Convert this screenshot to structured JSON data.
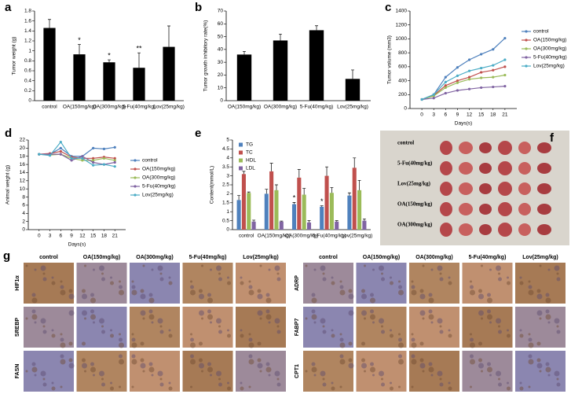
{
  "chart_data": [
    {
      "type": "bar",
      "panel": "a",
      "ylabel": "Tumor weight (g)",
      "categories": [
        "control",
        "OA(150mg/kg)",
        "OA(300mg/kg)",
        "5-Fu(40mg/kg)",
        "Lov(25mg/kg)"
      ],
      "values": [
        1.46,
        0.93,
        0.77,
        0.66,
        1.08
      ],
      "errors": [
        0.17,
        0.2,
        0.05,
        0.3,
        0.42
      ],
      "color": "#000000",
      "ylim": [
        0,
        1.8
      ],
      "yticks": [
        0,
        0.2,
        0.4,
        0.6,
        0.8,
        1,
        1.2,
        1.4,
        1.6,
        1.8
      ],
      "annotations": [
        {
          "text": "*",
          "category": "OA(150mg/kg)"
        },
        {
          "text": "*",
          "category": "OA(300mg/kg)"
        },
        {
          "text": "**",
          "category": "5-Fu(40mg/kg)"
        }
      ]
    },
    {
      "type": "bar",
      "panel": "b",
      "ylabel": "Tumor growth inhibitory rate(%)",
      "categories": [
        "OA(150mg/kg)",
        "OA(300mg/kg)",
        "5-Fu(40mg/kg)",
        "Lov(25mg/kg)"
      ],
      "values": [
        36,
        47,
        55,
        17
      ],
      "errors": [
        2.5,
        5,
        3.5,
        7
      ],
      "color": "#000000",
      "ylim": [
        0,
        70
      ],
      "yticks": [
        0,
        10,
        20,
        30,
        40,
        50,
        60,
        70
      ]
    },
    {
      "type": "line",
      "panel": "c",
      "ylabel": "Tumor volume (mm3)",
      "xlabel": "Days(s)",
      "x": [
        0,
        3,
        6,
        9,
        12,
        15,
        18,
        21
      ],
      "xlim": [
        -3,
        24
      ],
      "xticks": [
        0,
        3,
        6,
        9,
        12,
        15,
        18,
        21
      ],
      "ylim": [
        0,
        1400
      ],
      "yticks": [
        0,
        200,
        400,
        600,
        800,
        1000,
        1200,
        1400
      ],
      "legend": "right",
      "series": [
        {
          "name": "control",
          "color": "#4f81bd",
          "values": [
            130,
            200,
            450,
            590,
            700,
            780,
            850,
            1010
          ]
        },
        {
          "name": "OA(150mg/kg)",
          "color": "#c0504d",
          "values": [
            130,
            190,
            330,
            400,
            450,
            520,
            550,
            600
          ]
        },
        {
          "name": "OA(300mg/kg)",
          "color": "#9bbb59",
          "values": [
            130,
            180,
            300,
            370,
            420,
            440,
            450,
            480
          ]
        },
        {
          "name": "5-Fu(40mg/kg)",
          "color": "#8064a2",
          "values": [
            130,
            150,
            220,
            260,
            280,
            300,
            310,
            320
          ]
        },
        {
          "name": "Lov(25mg/kg)",
          "color": "#4bacc6",
          "values": [
            130,
            200,
            380,
            470,
            540,
            580,
            620,
            700
          ]
        }
      ]
    },
    {
      "type": "line",
      "panel": "d",
      "ylabel": "Animal weight (g)",
      "xlabel": "Days(s)",
      "x": [
        0,
        3,
        6,
        9,
        12,
        15,
        18,
        21
      ],
      "xlim": [
        -3,
        24
      ],
      "xticks": [
        0,
        3,
        6,
        9,
        12,
        15,
        18,
        21
      ],
      "ylim": [
        0,
        22
      ],
      "yticks": [
        0,
        2,
        4,
        6,
        8,
        10,
        12,
        14,
        16,
        18,
        20,
        22
      ],
      "legend": "right",
      "series": [
        {
          "name": "control",
          "color": "#4f81bd",
          "values": [
            18.5,
            18.5,
            20,
            18,
            18,
            20,
            19.8,
            20.2
          ]
        },
        {
          "name": "OA(150mg/kg)",
          "color": "#c0504d",
          "values": [
            18.5,
            18.7,
            19.2,
            17.8,
            17.5,
            17.5,
            17.8,
            17.5
          ]
        },
        {
          "name": "OA(300mg/kg)",
          "color": "#9bbb59",
          "values": [
            18.5,
            18.3,
            18.5,
            17.5,
            17,
            17,
            17.5,
            17
          ]
        },
        {
          "name": "5-Fu(40mg/kg)",
          "color": "#8064a2",
          "values": [
            18.5,
            18.5,
            18.5,
            17,
            18,
            16.5,
            16,
            16.5
          ]
        },
        {
          "name": "Lov(25mg/kg)",
          "color": "#4bacc6",
          "values": [
            18.5,
            18.2,
            21.5,
            17.5,
            17.5,
            15.8,
            16,
            15.5
          ]
        }
      ]
    },
    {
      "type": "bar",
      "panel": "e",
      "ylabel": "Content(mmol/L)",
      "categories": [
        "control",
        "OA(150mg/kg)",
        "OA(300mg/kg)",
        "5-Fu(40mg/kg)",
        "Lov(25mg/kg)"
      ],
      "ylim": [
        0,
        5
      ],
      "yticks": [
        0,
        0.5,
        1,
        1.5,
        2,
        2.5,
        3,
        3.5,
        4,
        4.5,
        5
      ],
      "legend": "upper left",
      "series": [
        {
          "name": "TG",
          "color": "#4f81bd",
          "values": [
            1.65,
            2.0,
            1.42,
            1.28,
            1.9
          ],
          "errors": [
            0.25,
            0.25,
            0.1,
            0.05,
            0.15
          ]
        },
        {
          "name": "TC",
          "color": "#c0504d",
          "values": [
            3.1,
            3.25,
            2.9,
            3.0,
            3.45
          ],
          "errors": [
            0.15,
            0.45,
            0.45,
            0.5,
            0.55
          ]
        },
        {
          "name": "HDL",
          "color": "#9bbb59",
          "values": [
            2.05,
            2.2,
            1.95,
            2.05,
            2.2
          ],
          "errors": [
            0.05,
            0.3,
            0.35,
            0.3,
            0.55
          ]
        },
        {
          "name": "LDL",
          "color": "#8064a2",
          "values": [
            0.45,
            0.45,
            0.4,
            0.45,
            0.5
          ],
          "errors": [
            0.08,
            0.03,
            0.1,
            0.05,
            0.1
          ]
        }
      ],
      "annotations": [
        {
          "text": "*",
          "category": "OA(300mg/kg)",
          "series": "TG"
        },
        {
          "text": "*",
          "category": "5-Fu(40mg/kg)",
          "series": "TG"
        }
      ]
    }
  ],
  "figure_panels": {
    "f": {
      "panel": "f",
      "labels": [
        "control",
        "5-Fu(40mg/kg)",
        "Lov(25mg/kg)",
        "OA(150mg/kg)",
        "OA(300mg/kg)"
      ]
    },
    "g": {
      "panel": "g",
      "groups": [
        {
          "columns": [
            "control",
            "OA(150mg/kg)",
            "OA(300mg/kg)",
            "5-Fu(40mg/kg)",
            "Lov(25mg/kg)"
          ],
          "rows": [
            "HIF1α",
            "SREBP",
            "FASN"
          ]
        },
        {
          "columns": [
            "control",
            "OA(150mg/kg)",
            "OA(300mg/kg)",
            "5-Fu(40mg/kg)",
            "Lov(25mg/kg)"
          ],
          "rows": [
            "ADRP",
            "FABP7",
            "CPT1"
          ]
        }
      ]
    }
  }
}
